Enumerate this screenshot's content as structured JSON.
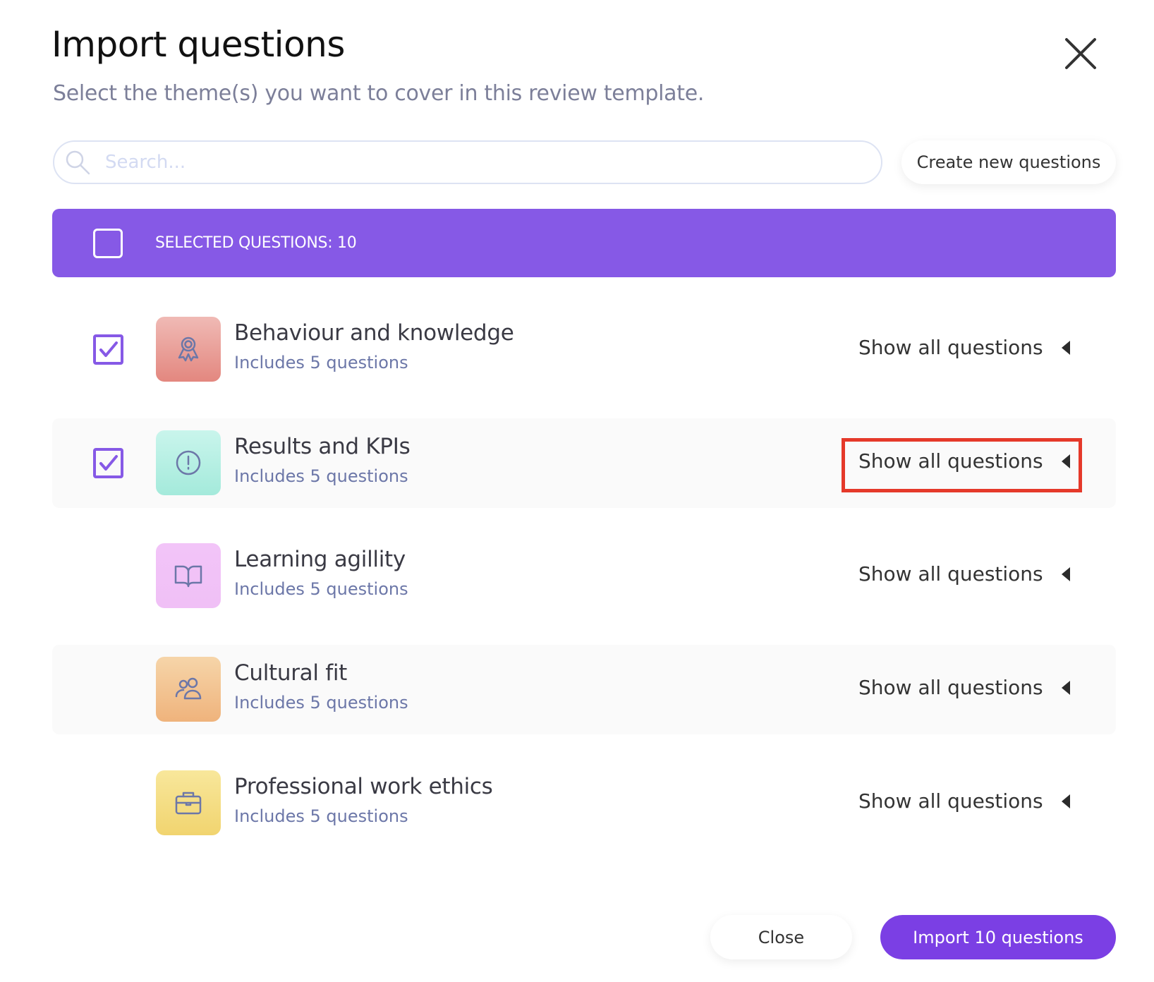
{
  "header": {
    "title": "Import questions",
    "subtitle": "Select the theme(s) you want to cover in this review template.",
    "close_icon": "close-icon"
  },
  "search": {
    "placeholder": "Search...",
    "value": ""
  },
  "toolbar": {
    "create_label": "Create new questions"
  },
  "selection_bar": {
    "label": "SELECTED QUESTIONS: 10",
    "checked": false,
    "color": "#8659e6"
  },
  "themes": [
    {
      "name": "Behaviour and knowledge",
      "sub": "Includes 5 questions",
      "checked": true,
      "icon": "award-icon",
      "color_top": "#f0bab5",
      "color_bottom": "#e3877f",
      "show": "Show all questions"
    },
    {
      "name": "Results and KPIs",
      "sub": "Includes 5 questions",
      "checked": true,
      "icon": "alert-circle-icon",
      "color_top": "#c9f5ec",
      "color_bottom": "#a4eadb",
      "show": "Show all questions",
      "highlighted": true
    },
    {
      "name": "Learning agillity",
      "sub": "Includes 5 questions",
      "checked": false,
      "icon": "book-open-icon",
      "color_top": "#f2c4f8",
      "color_bottom": "#f0c0f6",
      "show": "Show all questions"
    },
    {
      "name": "Cultural fit",
      "sub": "Includes 5 questions",
      "checked": false,
      "icon": "users-icon",
      "color_top": "#f6d5a9",
      "color_bottom": "#efb37c",
      "show": "Show all questions"
    },
    {
      "name": "Professional work ethics",
      "sub": "Includes 5 questions",
      "checked": false,
      "icon": "briefcase-icon",
      "color_top": "#f8e79b",
      "color_bottom": "#f1d46f",
      "show": "Show all questions"
    }
  ],
  "footer": {
    "close_label": "Close",
    "import_label": "Import 10 questions",
    "accent": "#7b3fe4"
  }
}
